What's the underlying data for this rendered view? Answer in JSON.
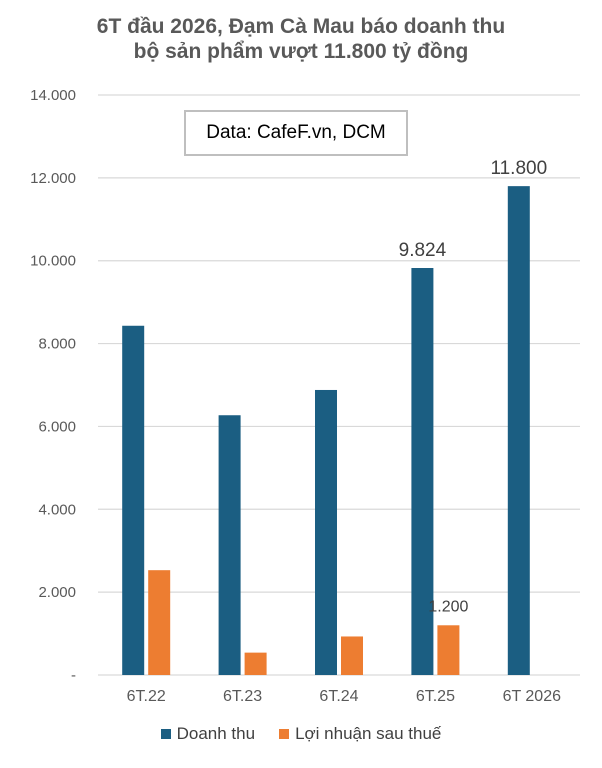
{
  "colors": {
    "revenue": "#1b5e82",
    "profit": "#ed7d31",
    "grid": "#d9d9d9",
    "axis_text": "#595959",
    "label_text": "#404040"
  },
  "chart_data": {
    "type": "bar",
    "title": "6T đầu 2026, Đạm Cà Mau báo doanh thu bộ sản phẩm vượt 11.800 tỷ đồng",
    "title_lines": [
      "6T đầu 2026, Đạm Cà Mau báo doanh thu",
      "bộ sản phẩm vượt 11.800 tỷ đồng"
    ],
    "source_note": "Data: CafeF.vn, DCM",
    "categories": [
      "6T.22",
      "6T.23",
      "6T.24",
      "6T.25",
      "6T 2026"
    ],
    "series": [
      {
        "name": "Doanh thu",
        "color": "#1b5e82",
        "values": [
          8430,
          6270,
          6880,
          9824,
          11800
        ]
      },
      {
        "name": "Lợi nhuận sau thuế",
        "color": "#ed7d31",
        "values": [
          2530,
          540,
          930,
          1200,
          null
        ]
      }
    ],
    "data_labels": [
      {
        "series": 0,
        "index": 3,
        "text": "9.824"
      },
      {
        "series": 0,
        "index": 4,
        "text": "11.800"
      },
      {
        "series": 1,
        "index": 3,
        "text": "1.200"
      }
    ],
    "ylim": [
      0,
      14000
    ],
    "y_ticks": [
      {
        "value": 0,
        "label": "-"
      },
      {
        "value": 2000,
        "label": "2.000"
      },
      {
        "value": 4000,
        "label": "4.000"
      },
      {
        "value": 6000,
        "label": "6.000"
      },
      {
        "value": 8000,
        "label": "8.000"
      },
      {
        "value": 10000,
        "label": "10.000"
      },
      {
        "value": 12000,
        "label": "12.000"
      },
      {
        "value": 14000,
        "label": "14.000"
      }
    ],
    "xlabel": "",
    "ylabel": "",
    "grid": true,
    "legend_position": "bottom"
  }
}
